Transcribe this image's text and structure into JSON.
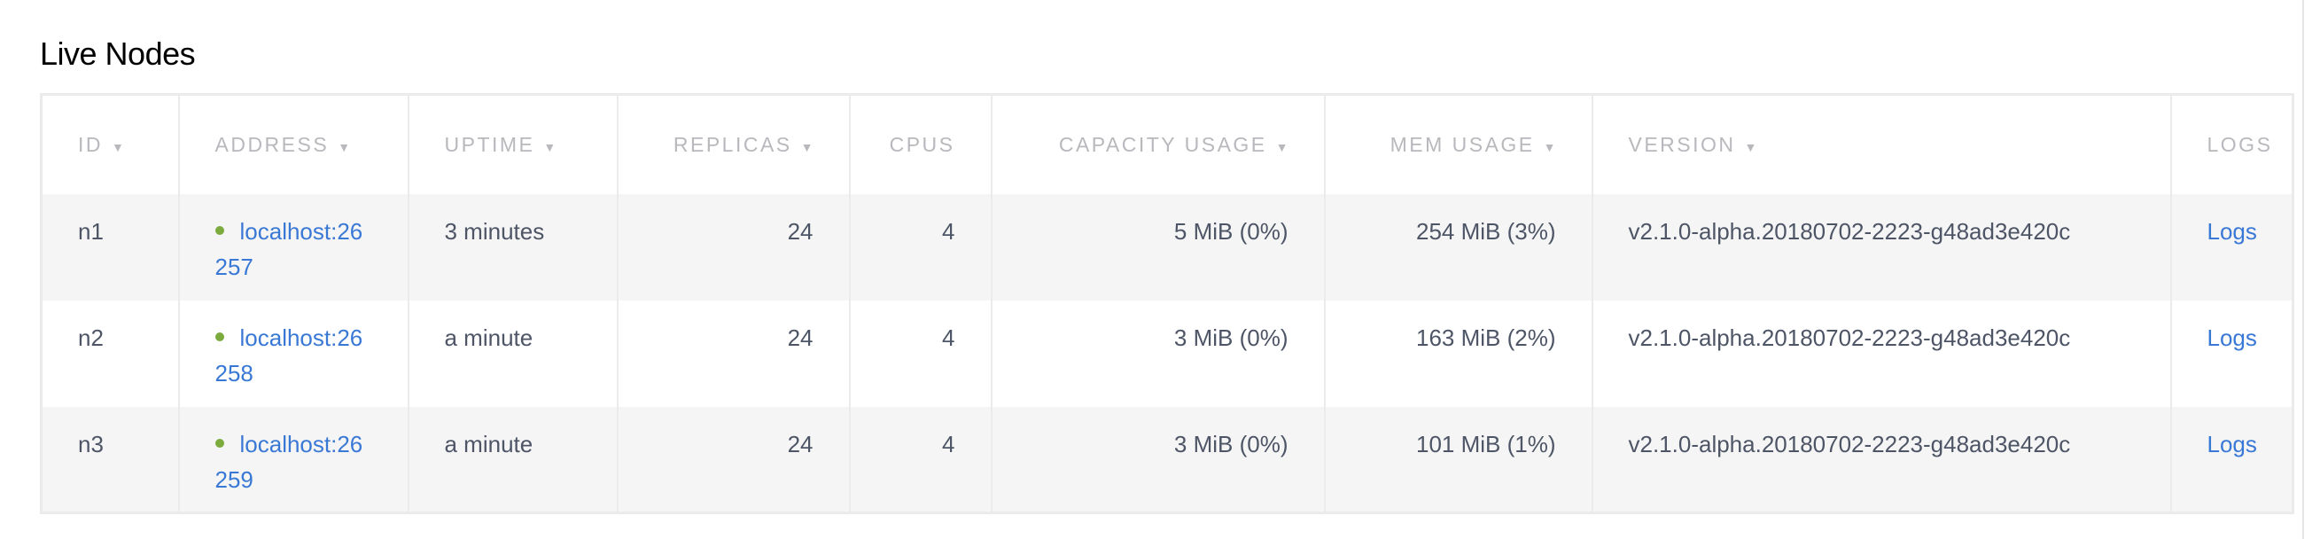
{
  "title": "Live Nodes",
  "colors": {
    "link": "#3a78d6",
    "status_live": "#7aab3c",
    "header_text": "#b8b8bd",
    "body_text": "#4d5566"
  },
  "columns": [
    {
      "label": "ID",
      "sortable": true
    },
    {
      "label": "ADDRESS",
      "sortable": true
    },
    {
      "label": "UPTIME",
      "sortable": true
    },
    {
      "label": "REPLICAS",
      "sortable": true
    },
    {
      "label": "CPUS",
      "sortable": false
    },
    {
      "label": "CAPACITY USAGE",
      "sortable": true
    },
    {
      "label": "MEM USAGE",
      "sortable": true
    },
    {
      "label": "VERSION",
      "sortable": true
    },
    {
      "label": "LOGS",
      "sortable": false
    }
  ],
  "sort_arrow": "▼",
  "rows": [
    {
      "id": "n1",
      "address": "localhost:26257",
      "uptime": "3 minutes",
      "replicas": "24",
      "cpus": "4",
      "capacity": "5 MiB (0%)",
      "mem": "254 MiB (3%)",
      "version": "v2.1.0-alpha.20180702-2223-g48ad3e420c",
      "logs": "Logs"
    },
    {
      "id": "n2",
      "address": "localhost:26258",
      "uptime": "a minute",
      "replicas": "24",
      "cpus": "4",
      "capacity": "3 MiB (0%)",
      "mem": "163 MiB (2%)",
      "version": "v2.1.0-alpha.20180702-2223-g48ad3e420c",
      "logs": "Logs"
    },
    {
      "id": "n3",
      "address": "localhost:26259",
      "uptime": "a minute",
      "replicas": "24",
      "cpus": "4",
      "capacity": "3 MiB (0%)",
      "mem": "101 MiB (1%)",
      "version": "v2.1.0-alpha.20180702-2223-g48ad3e420c",
      "logs": "Logs"
    }
  ]
}
